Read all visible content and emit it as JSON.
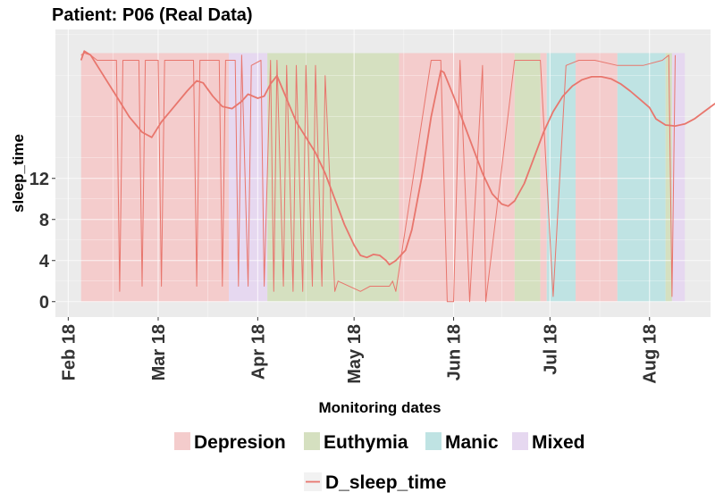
{
  "chart_data": {
    "type": "line",
    "title": "Patient: P06 (Real Data)",
    "xlabel": "Monitoring dates",
    "ylabel": "sleep_time",
    "x_range": [
      "2018-01-28",
      "2018-08-20"
    ],
    "ylim": [
      -1.5,
      26.5
    ],
    "y_ticks": [
      0,
      4,
      8,
      12
    ],
    "x_ticks": [
      {
        "date": "2018-02-01",
        "label": "Feb 18"
      },
      {
        "date": "2018-03-01",
        "label": "Mar 18"
      },
      {
        "date": "2018-04-01",
        "label": "Apr 18"
      },
      {
        "date": "2018-05-01",
        "label": "May 18"
      },
      {
        "date": "2018-06-01",
        "label": "Jun 18"
      },
      {
        "date": "2018-07-01",
        "label": "Jul 18"
      },
      {
        "date": "2018-08-01",
        "label": "Aug 18"
      }
    ],
    "grid": true,
    "legend_position": "bottom",
    "band_ymax": 24.2,
    "states": [
      {
        "name": "Depresion",
        "color": "#F4CCCC"
      },
      {
        "name": "Euthymia",
        "color": "#D5E0C0"
      },
      {
        "name": "Manic",
        "color": "#BFE3E3"
      },
      {
        "name": "Mixed",
        "color": "#E6D8F0"
      }
    ],
    "bands": [
      {
        "state": "Depresion",
        "start": "2018-02-05",
        "end": "2018-03-23"
      },
      {
        "state": "Mixed",
        "start": "2018-03-23",
        "end": "2018-04-04"
      },
      {
        "state": "Euthymia",
        "start": "2018-04-04",
        "end": "2018-05-15"
      },
      {
        "state": "Depresion",
        "start": "2018-05-15",
        "end": "2018-06-20"
      },
      {
        "state": "Euthymia",
        "start": "2018-06-20",
        "end": "2018-06-28"
      },
      {
        "state": "Depresion",
        "start": "2018-06-28",
        "end": "2018-06-30"
      },
      {
        "state": "Manic",
        "start": "2018-06-30",
        "end": "2018-07-09"
      },
      {
        "state": "Depresion",
        "start": "2018-07-09",
        "end": "2018-07-22"
      },
      {
        "state": "Manic",
        "start": "2018-07-22",
        "end": "2018-08-06"
      },
      {
        "state": "Euthymia",
        "start": "2018-08-06",
        "end": "2018-08-08"
      },
      {
        "state": "Mixed",
        "start": "2018-08-08",
        "end": "2018-08-12"
      }
    ],
    "series": [
      {
        "name": "D_sleep_time",
        "color": "#E8766D",
        "points": [
          [
            "2018-02-05",
            23.5
          ],
          [
            "2018-02-06",
            24.4
          ],
          [
            "2018-02-08",
            24
          ],
          [
            "2018-02-12",
            22
          ],
          [
            "2018-02-16",
            20
          ],
          [
            "2018-02-20",
            18
          ],
          [
            "2018-02-24",
            16.5
          ],
          [
            "2018-02-27",
            16
          ],
          [
            "2018-03-02",
            17.5
          ],
          [
            "2018-03-06",
            19
          ],
          [
            "2018-03-10",
            20.5
          ],
          [
            "2018-03-13",
            21.5
          ],
          [
            "2018-03-15",
            21.3
          ],
          [
            "2018-03-18",
            20
          ],
          [
            "2018-03-21",
            19
          ],
          [
            "2018-03-24",
            18.8
          ],
          [
            "2018-03-27",
            19.5
          ],
          [
            "2018-03-29",
            20.2
          ],
          [
            "2018-04-01",
            19.8
          ],
          [
            "2018-04-03",
            20
          ],
          [
            "2018-04-05",
            21.2
          ],
          [
            "2018-04-07",
            22
          ],
          [
            "2018-04-09",
            20.5
          ],
          [
            "2018-04-11",
            19
          ],
          [
            "2018-04-13",
            17.5
          ],
          [
            "2018-04-16",
            16
          ],
          [
            "2018-04-19",
            14.5
          ],
          [
            "2018-04-22",
            12.5
          ],
          [
            "2018-04-25",
            10
          ],
          [
            "2018-04-28",
            7.5
          ],
          [
            "2018-05-01",
            5.5
          ],
          [
            "2018-05-03",
            4.5
          ],
          [
            "2018-05-05",
            4.3
          ],
          [
            "2018-05-07",
            4.6
          ],
          [
            "2018-05-09",
            4.5
          ],
          [
            "2018-05-11",
            4
          ],
          [
            "2018-05-12",
            3.6
          ],
          [
            "2018-05-14",
            4
          ],
          [
            "2018-05-17",
            5
          ],
          [
            "2018-05-19",
            7
          ],
          [
            "2018-05-22",
            12
          ],
          [
            "2018-05-25",
            18
          ],
          [
            "2018-05-28",
            22.5
          ],
          [
            "2018-05-29",
            22.3
          ],
          [
            "2018-06-01",
            20
          ],
          [
            "2018-06-04",
            17.5
          ],
          [
            "2018-06-07",
            15
          ],
          [
            "2018-06-10",
            12.5
          ],
          [
            "2018-06-13",
            10.5
          ],
          [
            "2018-06-16",
            9.5
          ],
          [
            "2018-06-18",
            9.3
          ],
          [
            "2018-06-20",
            9.8
          ],
          [
            "2018-06-23",
            11.5
          ],
          [
            "2018-06-26",
            14
          ],
          [
            "2018-06-29",
            16.5
          ],
          [
            "2018-07-02",
            18.5
          ],
          [
            "2018-07-05",
            20
          ],
          [
            "2018-07-08",
            21
          ],
          [
            "2018-07-11",
            21.6
          ],
          [
            "2018-07-14",
            21.9
          ],
          [
            "2018-07-17",
            21.9
          ],
          [
            "2018-07-20",
            21.7
          ],
          [
            "2018-07-23",
            21.2
          ],
          [
            "2018-07-26",
            20.5
          ],
          [
            "2018-07-29",
            19.7
          ],
          [
            "2018-08-01",
            18.9
          ],
          [
            "2018-08-03",
            17.8
          ],
          [
            "2018-08-06",
            17.2
          ],
          [
            "2018-08-09",
            17.1
          ],
          [
            "2018-08-12",
            17.3
          ],
          [
            "2018-08-15",
            17.8
          ],
          [
            "2018-08-18",
            18.5
          ],
          [
            "2018-08-21",
            19.2
          ],
          [
            "2018-08-24",
            19.8
          ]
        ]
      },
      {
        "name": "sleep_time",
        "color": "#E8766D",
        "points": [
          [
            "2018-02-05",
            24
          ],
          [
            "2018-02-06",
            24.2
          ],
          [
            "2018-02-08",
            24
          ],
          [
            "2018-02-10",
            23.5
          ],
          [
            "2018-02-14",
            23.5
          ],
          [
            "2018-02-16",
            23.5
          ],
          [
            "2018-02-17",
            1
          ],
          [
            "2018-02-18",
            23.5
          ],
          [
            "2018-02-21",
            23.5
          ],
          [
            "2018-02-23",
            23.5
          ],
          [
            "2018-02-24",
            1.5
          ],
          [
            "2018-02-25",
            23.5
          ],
          [
            "2018-02-27",
            23.5
          ],
          [
            "2018-03-01",
            23.5
          ],
          [
            "2018-03-02",
            1.5
          ],
          [
            "2018-03-03",
            23.5
          ],
          [
            "2018-03-07",
            23.5
          ],
          [
            "2018-03-10",
            23.5
          ],
          [
            "2018-03-12",
            23.5
          ],
          [
            "2018-03-13",
            1.5
          ],
          [
            "2018-03-14",
            23.5
          ],
          [
            "2018-03-18",
            23.5
          ],
          [
            "2018-03-20",
            23.5
          ],
          [
            "2018-03-21",
            1.5
          ],
          [
            "2018-03-22",
            23.5
          ],
          [
            "2018-03-25",
            23.5
          ],
          [
            "2018-03-26",
            1.5
          ],
          [
            "2018-03-27",
            24
          ],
          [
            "2018-03-29",
            1.5
          ],
          [
            "2018-03-30",
            23
          ],
          [
            "2018-04-02",
            23.5
          ],
          [
            "2018-04-03",
            1.5
          ],
          [
            "2018-04-05",
            23.5
          ],
          [
            "2018-04-06",
            1
          ],
          [
            "2018-04-07",
            23.5
          ],
          [
            "2018-04-09",
            1.5
          ],
          [
            "2018-04-10",
            23
          ],
          [
            "2018-04-12",
            1
          ],
          [
            "2018-04-13",
            23
          ],
          [
            "2018-04-15",
            1
          ],
          [
            "2018-04-16",
            23
          ],
          [
            "2018-04-18",
            1.5
          ],
          [
            "2018-04-19",
            23
          ],
          [
            "2018-04-21",
            1.5
          ],
          [
            "2018-04-22",
            22
          ],
          [
            "2018-04-25",
            1
          ],
          [
            "2018-04-26",
            2
          ],
          [
            "2018-05-03",
            1
          ],
          [
            "2018-05-06",
            1.5
          ],
          [
            "2018-05-12",
            1.5
          ],
          [
            "2018-05-13",
            2
          ],
          [
            "2018-05-14",
            1
          ],
          [
            "2018-05-25",
            23.5
          ],
          [
            "2018-05-28",
            23.5
          ],
          [
            "2018-05-30",
            0
          ],
          [
            "2018-06-01",
            0
          ],
          [
            "2018-06-03",
            23.5
          ],
          [
            "2018-06-06",
            0
          ],
          [
            "2018-06-10",
            23
          ],
          [
            "2018-06-11",
            0
          ],
          [
            "2018-06-20",
            23.5
          ],
          [
            "2018-06-25",
            23.5
          ],
          [
            "2018-06-28",
            23.5
          ],
          [
            "2018-07-02",
            0.5
          ],
          [
            "2018-07-06",
            23
          ],
          [
            "2018-07-10",
            23.5
          ],
          [
            "2018-07-15",
            23.5
          ],
          [
            "2018-07-22",
            23
          ],
          [
            "2018-07-30",
            23
          ],
          [
            "2018-08-05",
            23.5
          ],
          [
            "2018-08-07",
            24
          ],
          [
            "2018-08-08",
            0.5
          ],
          [
            "2018-08-09",
            24
          ]
        ]
      }
    ]
  }
}
